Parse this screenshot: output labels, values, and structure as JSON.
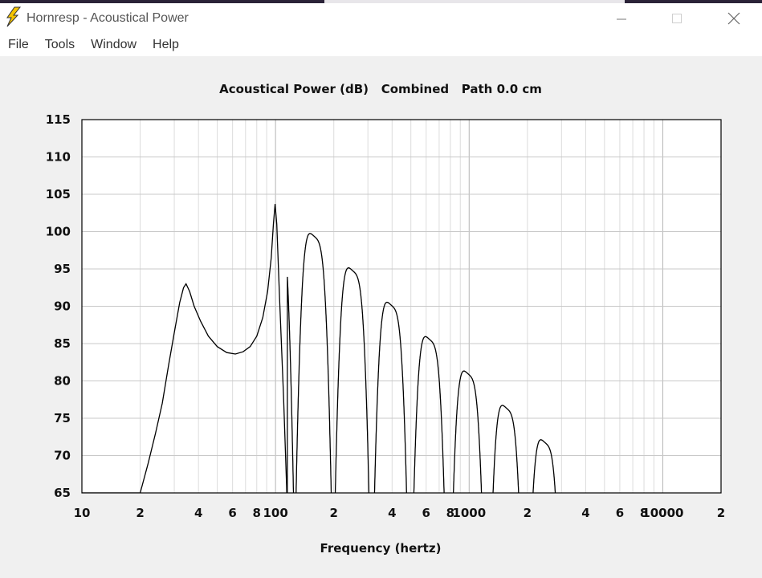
{
  "window": {
    "title": "Hornresp - Acoustical Power",
    "icon": "lightning-bolt-icon",
    "controls": [
      "minimize-icon",
      "maximize-icon",
      "close-icon"
    ]
  },
  "menu": {
    "items": [
      {
        "label": "File"
      },
      {
        "label": "Tools"
      },
      {
        "label": "Window"
      },
      {
        "label": "Help"
      }
    ]
  },
  "colors": {
    "background": "#f0f0f0",
    "plot_background": "#ffffff",
    "grid": "#c8c8c8",
    "curve": "#000000",
    "icon_yellow": "#f5c400"
  },
  "chart_data": {
    "type": "line",
    "title": "Acoustical Power (dB)   Combined   Path 0.0 cm",
    "xlabel": "Frequency (hertz)",
    "ylabel": "",
    "x_scale": "log",
    "xlim": [
      10,
      20000
    ],
    "ylim": [
      65,
      115
    ],
    "y_ticks": [
      "115",
      "110",
      "105",
      "100",
      "95",
      "90",
      "85",
      "80",
      "75",
      "70",
      "65"
    ],
    "x_tick_labels": [
      {
        "x": 10,
        "label": "10"
      },
      {
        "x": 20,
        "label": "2"
      },
      {
        "x": 40,
        "label": "4"
      },
      {
        "x": 60,
        "label": "6"
      },
      {
        "x": 80,
        "label": "8"
      },
      {
        "x": 100,
        "label": "100"
      },
      {
        "x": 200,
        "label": "2"
      },
      {
        "x": 400,
        "label": "4"
      },
      {
        "x": 600,
        "label": "6"
      },
      {
        "x": 800,
        "label": "8"
      },
      {
        "x": 1000,
        "label": "1000"
      },
      {
        "x": 2000,
        "label": "2"
      },
      {
        "x": 4000,
        "label": "4"
      },
      {
        "x": 6000,
        "label": "6"
      },
      {
        "x": 8000,
        "label": "8"
      },
      {
        "x": 10000,
        "label": "10000"
      },
      {
        "x": 20000,
        "label": "2"
      }
    ],
    "grid": true,
    "legend": "none",
    "series": [
      {
        "points": [
          [
            10,
            65
          ],
          [
            20,
            65
          ],
          [
            22,
            69
          ],
          [
            24,
            73
          ],
          [
            26,
            77
          ],
          [
            28,
            82
          ],
          [
            30,
            86.5
          ],
          [
            32,
            90.5
          ],
          [
            33.5,
            92.5
          ],
          [
            34.5,
            93
          ],
          [
            36,
            92
          ],
          [
            38,
            90
          ],
          [
            41,
            88
          ],
          [
            45,
            86
          ],
          [
            50,
            84.6
          ],
          [
            56,
            83.8
          ],
          [
            62,
            83.6
          ],
          [
            68,
            83.9
          ],
          [
            74,
            84.6
          ],
          [
            80,
            86
          ],
          [
            86,
            88.5
          ],
          [
            91,
            92
          ],
          [
            95,
            96.5
          ],
          [
            97.5,
            101
          ],
          [
            99.5,
            103.7
          ],
          [
            101.5,
            101
          ],
          [
            105,
            91
          ],
          [
            110,
            78
          ],
          [
            114,
            66
          ],
          [
            115,
            62
          ]
        ]
      }
    ]
  }
}
